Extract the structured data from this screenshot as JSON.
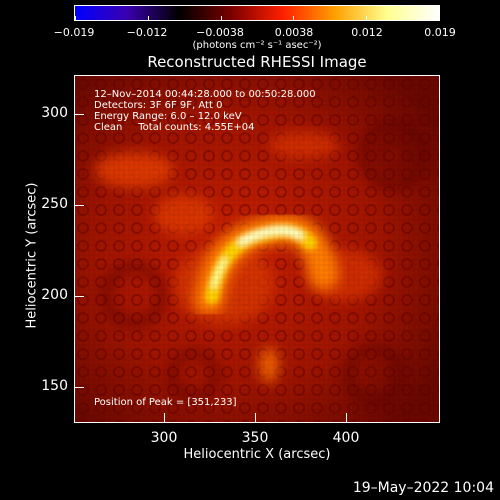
{
  "colorbar": {
    "tick_labels": [
      "−0.019",
      "−0.012",
      "−0.0038",
      "0.0038",
      "0.012",
      "0.019"
    ],
    "units": "(photons cm⁻² s⁻¹ asec⁻²)",
    "colors": [
      "#0000ff",
      "#3a00b0",
      "#000000",
      "#7a0000",
      "#ff2000",
      "#ffa000",
      "#ffff90",
      "#ffffff"
    ]
  },
  "title": "Reconstructed RHESSI Image",
  "info": {
    "time_range": "12–Nov–2014 00:44:28.000 to 00:50:28.000",
    "detectors": "Detectors: 3F 6F 9F, Att 0",
    "energy": "Energy Range: 6.0 – 12.0 keV",
    "algorithm": "Clean     Total counts: 4.55E+04",
    "peak": "Position of Peak = [351,233]"
  },
  "axes": {
    "x_label": "Heliocentric X (arcsec)",
    "y_label": "Heliocentric Y (arcsec)",
    "x_ticks": [
      "300",
      "350",
      "400"
    ],
    "y_ticks": [
      "300",
      "250",
      "200",
      "150"
    ]
  },
  "footer": {
    "timestamp": "19–May–2022 10:04"
  }
}
